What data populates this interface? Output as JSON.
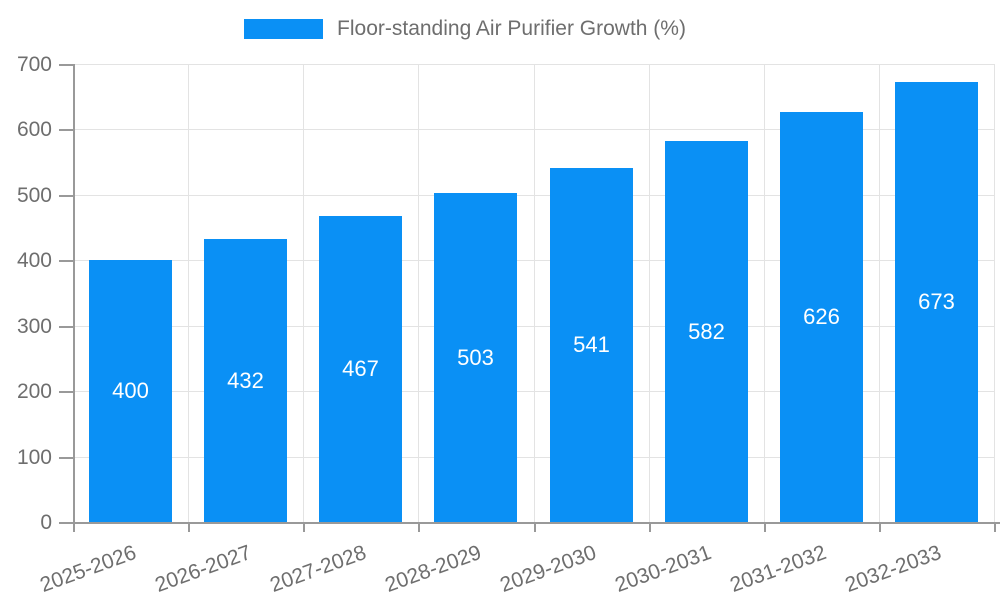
{
  "chart_data": {
    "type": "bar",
    "title": "Floor-standing Air Purifier Growth (%)",
    "series_name": "Floor-standing Air Purifier Growth (%)",
    "categories": [
      "2025-2026",
      "2026-2027",
      "2027-2028",
      "2028-2029",
      "2029-2030",
      "2030-2031",
      "2031-2032",
      "2032-2033"
    ],
    "values": [
      400,
      432,
      467,
      503,
      541,
      582,
      626,
      673
    ],
    "xlabel": "",
    "ylabel": "",
    "ylim": [
      0,
      700
    ],
    "yticks": [
      0,
      100,
      200,
      300,
      400,
      500,
      600,
      700
    ],
    "grid": true,
    "legend_position": "top",
    "bar_color": "#0a90f5",
    "bar_label_color": "#ffffff",
    "axis_color": "#999999",
    "grid_color": "#e3e3e3",
    "tick_label_color": "#6e6e6e"
  }
}
